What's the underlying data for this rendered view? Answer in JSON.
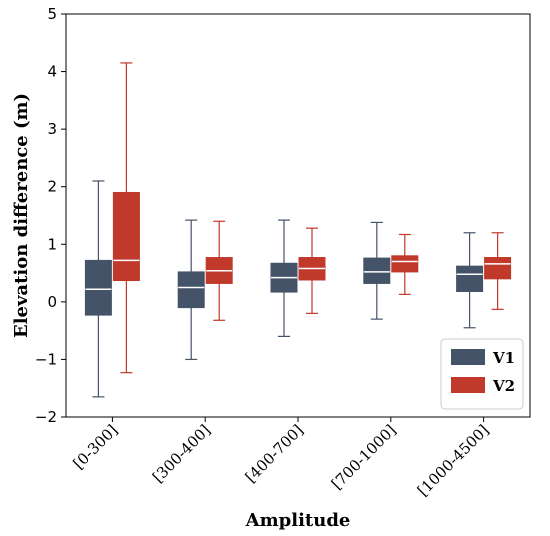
{
  "chart_data": {
    "type": "boxplot",
    "xlabel": "Amplitude",
    "ylabel": "Elevation difference (m)",
    "ylim": [
      -2,
      5
    ],
    "yticks": [
      -2,
      -1,
      0,
      1,
      2,
      3,
      4,
      5
    ],
    "ytick_labels": [
      "−2",
      "−1",
      "0",
      "1",
      "2",
      "3",
      "4",
      "5"
    ],
    "categories": [
      "[0-300]",
      "[300-400]",
      "[400-700]",
      "[700-1000]",
      "[1000-4500]"
    ],
    "grid": false,
    "legend_position": "bottom-right",
    "series": [
      {
        "name": "V1",
        "color": "#455368",
        "boxes": [
          {
            "whislo": -1.65,
            "q1": -0.23,
            "med": 0.22,
            "q3": 0.72,
            "whishi": 2.1
          },
          {
            "whislo": -1.0,
            "q1": -0.1,
            "med": 0.25,
            "q3": 0.52,
            "whishi": 1.42
          },
          {
            "whislo": -0.6,
            "q1": 0.17,
            "med": 0.42,
            "q3": 0.67,
            "whishi": 1.42
          },
          {
            "whislo": -0.3,
            "q1": 0.32,
            "med": 0.52,
            "q3": 0.76,
            "whishi": 1.38
          },
          {
            "whislo": -0.45,
            "q1": 0.18,
            "med": 0.48,
            "q3": 0.62,
            "whishi": 1.2
          }
        ]
      },
      {
        "name": "V2",
        "color": "#c0392b",
        "boxes": [
          {
            "whislo": -1.23,
            "q1": 0.37,
            "med": 0.72,
            "q3": 1.9,
            "whishi": 4.15
          },
          {
            "whislo": -0.32,
            "q1": 0.32,
            "med": 0.54,
            "q3": 0.77,
            "whishi": 1.4
          },
          {
            "whislo": -0.2,
            "q1": 0.38,
            "med": 0.58,
            "q3": 0.77,
            "whishi": 1.28
          },
          {
            "whislo": 0.13,
            "q1": 0.52,
            "med": 0.7,
            "q3": 0.8,
            "whishi": 1.17
          },
          {
            "whislo": -0.13,
            "q1": 0.4,
            "med": 0.66,
            "q3": 0.77,
            "whishi": 1.2
          }
        ]
      }
    ]
  }
}
